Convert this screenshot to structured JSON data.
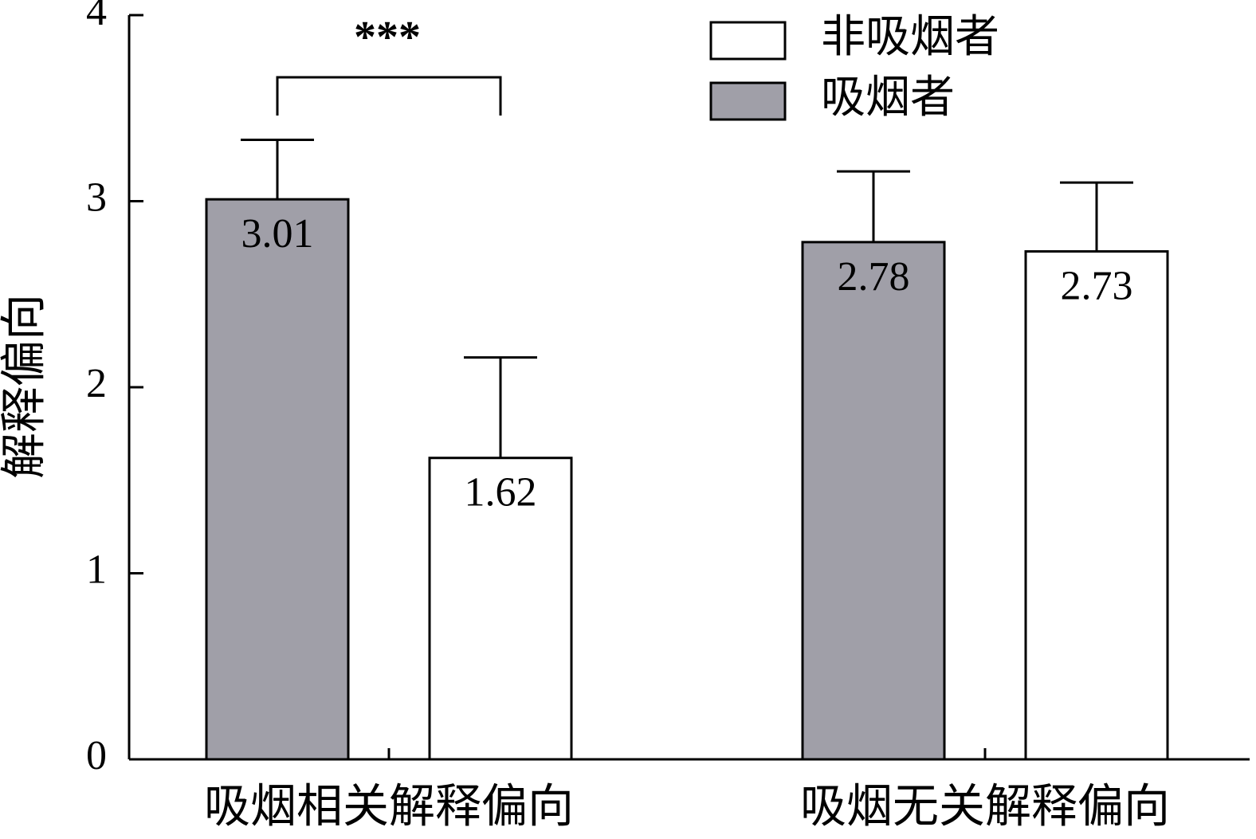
{
  "chart_data": {
    "type": "bar",
    "categories": [
      "吸烟相关解释偏向",
      "吸烟无关解释偏向"
    ],
    "y_label": "解释偏向",
    "annotation": "***",
    "series": [
      {
        "name": "非吸烟者",
        "color": "#ffffff",
        "values": [
          1.62,
          2.73
        ],
        "errors": [
          0.54,
          0.37
        ]
      },
      {
        "name": "吸烟者",
        "color": "#a09fa8",
        "values": [
          3.01,
          2.78
        ],
        "errors": [
          0.32,
          0.38
        ]
      }
    ],
    "ylim": [
      0,
      4
    ],
    "yticks": [
      0,
      1,
      2,
      3,
      4
    ]
  }
}
